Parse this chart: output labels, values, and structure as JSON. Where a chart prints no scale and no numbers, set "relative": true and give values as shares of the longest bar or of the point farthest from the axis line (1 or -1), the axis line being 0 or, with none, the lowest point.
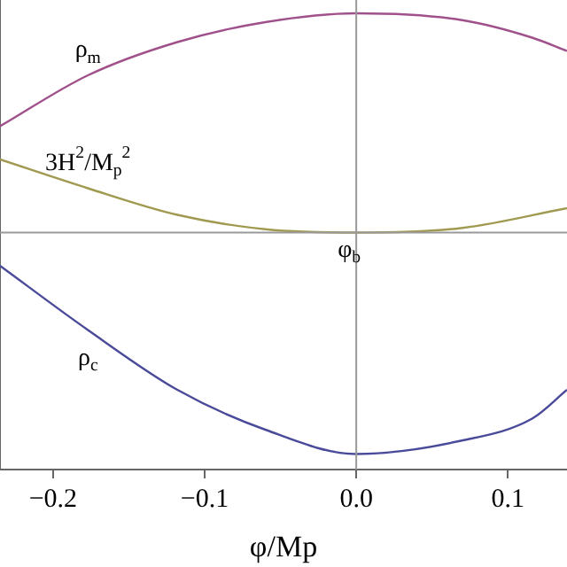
{
  "chart_data": {
    "type": "line",
    "relative": true,
    "xlabel": "φ/Mp",
    "xlim": [
      -0.235,
      0.139
    ],
    "xticks": [
      {
        "value": -0.2,
        "label": "−0.2"
      },
      {
        "value": -0.1,
        "label": "−0.1"
      },
      {
        "value": 0,
        "label": "0.0"
      },
      {
        "value": 0.1,
        "label": "0.1"
      }
    ],
    "grid": false,
    "legend": false,
    "marker": "none",
    "line_style": "solid",
    "tick_labels": "x",
    "series": [
      {
        "name": "ρ$_{m}$",
        "color": "#a0508a",
        "x": [
          -0.235,
          -0.177,
          -0.118,
          -0.06,
          0,
          0.069,
          0.116,
          0.139
        ],
        "values": [
          0.48,
          0.71,
          0.86,
          0.95,
          0.99,
          0.96,
          0.88,
          0.82
        ]
      },
      {
        "name": "3H$^{2}$/M$_{p}$$^{2}$",
        "color": "#a09a50",
        "x": [
          -0.235,
          -0.177,
          -0.118,
          -0.06,
          0,
          0.069,
          0.139
        ],
        "values": [
          0.33,
          0.2,
          0.08,
          0.015,
          0,
          0.02,
          0.11
        ]
      },
      {
        "name": "ρ$_{c}$",
        "color": "#4a4a9a",
        "x": [
          -0.235,
          -0.177,
          -0.118,
          -0.06,
          0,
          0.069,
          0.116,
          0.139
        ],
        "values": [
          -0.15,
          -0.44,
          -0.71,
          -0.89,
          -1,
          -0.94,
          -0.84,
          -0.71
        ]
      }
    ],
    "ref_lines": [
      {
        "axis": "x",
        "value": 0,
        "color": "#999999"
      }
    ],
    "annotations": [
      "φ$_{b}$"
    ]
  }
}
